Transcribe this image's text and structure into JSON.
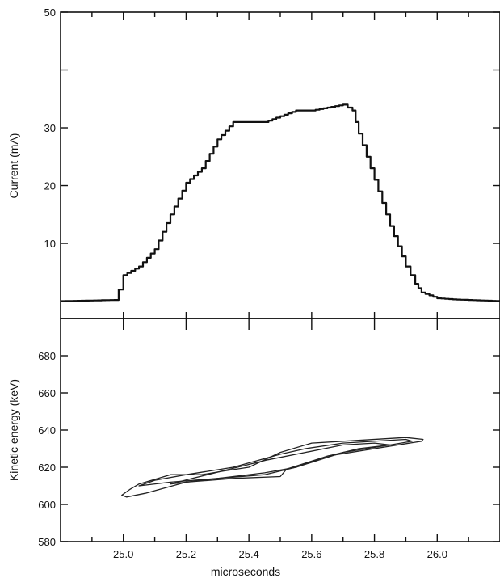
{
  "chart_data": [
    {
      "type": "line",
      "title": "",
      "xlabel": "",
      "ylabel": "Current (mA)",
      "xlim": [
        24.8,
        26.2
      ],
      "ylim": [
        -3,
        50
      ],
      "yticks": [
        "10",
        "20",
        "30",
        "50"
      ],
      "ytick_values": [
        10,
        20,
        30,
        50
      ],
      "grid": false,
      "series": [
        {
          "x": [
            24.8,
            24.97,
            24.985,
            25.0,
            25.05,
            25.1,
            25.15,
            25.2,
            25.25,
            25.3,
            25.35,
            25.4,
            25.45,
            25.5,
            25.55,
            25.6,
            25.65,
            25.7,
            25.73,
            25.75,
            25.8,
            25.85,
            25.9,
            25.93,
            25.95,
            26.0,
            26.05,
            26.2
          ],
          "y": [
            0,
            0.2,
            2,
            4.5,
            6,
            9,
            15,
            20.5,
            23,
            28,
            31,
            31,
            31,
            32,
            33,
            33,
            33.5,
            34,
            33,
            29,
            21,
            13,
            6,
            3,
            1.5,
            0.5,
            0.3,
            0
          ]
        }
      ]
    },
    {
      "type": "line",
      "title": "",
      "xlabel": "microseconds",
      "ylabel": "Kinetic energy (keV)",
      "xlim": [
        24.8,
        26.2
      ],
      "ylim": [
        580,
        700
      ],
      "xticks": [
        "25.0",
        "25.2",
        "25.4",
        "25.6",
        "25.8",
        "26.0"
      ],
      "xtick_values": [
        25.0,
        25.2,
        25.4,
        25.6,
        25.8,
        26.0
      ],
      "yticks": [
        "580",
        "600",
        "620",
        "640",
        "660",
        "680"
      ],
      "ytick_values": [
        580,
        600,
        620,
        640,
        660,
        680
      ],
      "grid": false,
      "series": [
        {
          "x": [
            24.995,
            25.01,
            25.07,
            25.2,
            25.35,
            25.5,
            25.52,
            25.65,
            25.8,
            25.95,
            25.955,
            25.9,
            25.7,
            25.6,
            25.5,
            25.4,
            25.32,
            25.25,
            25.15,
            25.05,
            25.02,
            24.995
          ],
          "y": [
            605,
            604,
            606,
            612,
            614,
            615,
            619,
            626,
            630,
            634,
            635,
            636,
            634,
            633,
            628,
            620,
            618,
            616,
            616,
            611,
            608,
            605
          ]
        },
        {
          "x": [
            25.05,
            25.15,
            25.3,
            25.45,
            25.55,
            25.7,
            25.85,
            25.92,
            25.9,
            25.7,
            25.58,
            25.5,
            25.35,
            25.2,
            25.1,
            25.05
          ],
          "y": [
            610,
            612,
            614,
            616,
            620,
            628,
            632,
            634,
            635,
            633,
            630,
            627,
            620,
            616,
            613,
            610
          ]
        },
        {
          "x": [
            25.15,
            25.25,
            25.35,
            25.45,
            25.55,
            25.65,
            25.75,
            25.85,
            25.8,
            25.7,
            25.58,
            25.46,
            25.34,
            25.22,
            25.15
          ],
          "y": [
            611,
            613,
            615,
            617,
            620,
            626,
            630,
            632,
            633,
            632,
            628,
            624,
            619,
            614,
            611
          ]
        }
      ]
    }
  ]
}
